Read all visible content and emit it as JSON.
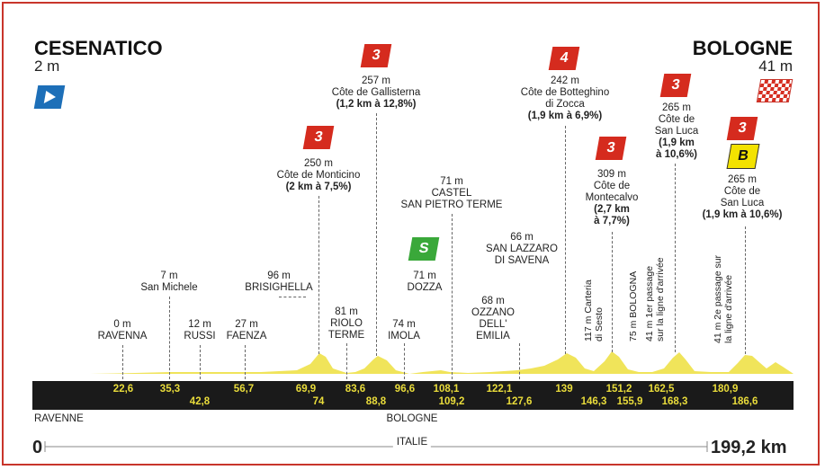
{
  "start": {
    "name": "CESENATICO",
    "alt": "2 m",
    "km": "0"
  },
  "finish": {
    "name": "BOLOGNE",
    "alt": "41 m",
    "km": "199,2 km"
  },
  "bottom": {
    "left": "RAVENNE",
    "center": "BOLOGNE",
    "country": "ITALIE"
  },
  "badges": {
    "cat3": "3",
    "cat4": "4",
    "sprint": "S",
    "bonus": "B"
  },
  "climbs": {
    "gallisterna": {
      "alt": "257 m",
      "name": "Côte de Gallisterna",
      "detail": "(1,2 km à 12,8%)"
    },
    "monticino": {
      "alt": "250 m",
      "name": "Côte de Monticino",
      "detail": "(2 km à 7,5%)"
    },
    "botteghino": {
      "alt": "242 m",
      "name1": "Côte de Botteghino",
      "name2": "di Zocca",
      "detail": "(1,9 km à 6,9%)"
    },
    "montecalvo": {
      "alt": "309 m",
      "name1": "Côte de",
      "name2": "Montecalvo",
      "detail1": "(2,7 km",
      "detail2": "à 7,7%)"
    },
    "sanluca1": {
      "alt": "265 m",
      "name1": "Côte de",
      "name2": "San Luca",
      "detail1": "(1,9 km",
      "detail2": "à 10,6%)"
    },
    "sanluca2": {
      "alt": "265 m",
      "name1": "Côte de",
      "name2": "San Luca",
      "detail": "(1,9 km à 10,6%)"
    }
  },
  "towns": {
    "castel": {
      "alt": "71 m",
      "name1": "CASTEL",
      "name2": "SAN PIETRO TERME"
    },
    "lazzaro": {
      "alt": "66 m",
      "name1": "SAN LAZZARO",
      "name2": "DI SAVENA"
    },
    "sanmichele": {
      "alt": "7 m",
      "name": "San Michele"
    },
    "brisighella": {
      "alt": "96 m",
      "name": "BRISIGHELLA"
    },
    "dozza": {
      "alt": "71 m",
      "name": "DOZZA"
    },
    "riolo": {
      "alt": "81 m",
      "name1": "RIOLO",
      "name2": "TERME"
    },
    "ozzano": {
      "alt": "68 m",
      "name1": "OZZANO",
      "name2": "DELL'",
      "name3": "EMILIA"
    },
    "ravenna": {
      "alt": "0 m",
      "name": "RAVENNA"
    },
    "russi": {
      "alt": "12 m",
      "name": "RUSSI"
    },
    "faenza": {
      "alt": "27 m",
      "name": "FAENZA"
    },
    "imola": {
      "alt": "74 m",
      "name": "IMOLA"
    }
  },
  "vertical": {
    "carteria": "117 m Carteria",
    "carteria2": "di Sesto",
    "bologna": "75 m BOLOGNA",
    "pass1": "41 m 1er passage",
    "pass1b": "sur la ligne d'arrivée",
    "pass2": "41 m 2e passage sur",
    "pass2b": "la ligne d'arrivée"
  },
  "km_top": [
    "22,6",
    "35,3",
    "56,7",
    "69,9",
    "83,6",
    "96,6",
    "108,1",
    "122,1",
    "139",
    "151,2",
    "162,5",
    "180,9"
  ],
  "km_bottom": [
    "42,8",
    "74",
    "88,8",
    "109,2",
    "127,6",
    "146,3",
    "155,9",
    "168,3",
    "186,6"
  ],
  "colors": {
    "profile": "#f0e45a",
    "band": "#1a1a1a",
    "km": "#e9dc3b",
    "frame": "#c8352b"
  }
}
